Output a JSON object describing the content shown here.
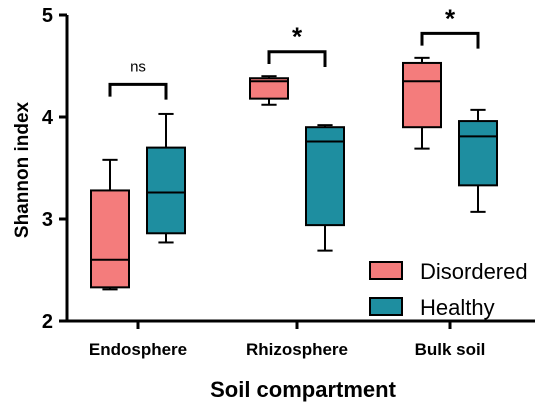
{
  "chart_data": {
    "type": "box",
    "xlabel": "Soil compartment",
    "ylabel": "Shannon index",
    "ylim": [
      2,
      5
    ],
    "yticks": [
      2,
      3,
      4,
      5
    ],
    "categories": [
      "Endosphere",
      "Rhizosphere",
      "Bulk soil"
    ],
    "series": [
      {
        "name": "Disordered",
        "color": "#f47c7c",
        "boxes": [
          {
            "min": 2.31,
            "q1": 2.33,
            "median": 2.6,
            "q3": 3.28,
            "max": 3.58
          },
          {
            "min": 4.12,
            "q1": 4.18,
            "median": 4.35,
            "q3": 4.38,
            "max": 4.4
          },
          {
            "min": 3.69,
            "q1": 3.9,
            "median": 4.35,
            "q3": 4.53,
            "max": 4.58
          }
        ]
      },
      {
        "name": "Healthy",
        "color": "#1e8ea0",
        "boxes": [
          {
            "min": 2.77,
            "q1": 2.86,
            "median": 3.26,
            "q3": 3.7,
            "max": 4.03
          },
          {
            "min": 2.69,
            "q1": 2.94,
            "median": 3.76,
            "q3": 3.9,
            "max": 3.92
          },
          {
            "min": 3.07,
            "q1": 3.33,
            "median": 3.81,
            "q3": 3.96,
            "max": 4.07
          }
        ]
      }
    ],
    "significance": [
      {
        "category": "Endosphere",
        "label": "ns",
        "y": 4.32
      },
      {
        "category": "Rhizosphere",
        "label": "*",
        "y": 4.64
      },
      {
        "category": "Bulk soil",
        "label": "*",
        "y": 4.82
      }
    ],
    "legend": {
      "position": "bottom-right"
    }
  }
}
